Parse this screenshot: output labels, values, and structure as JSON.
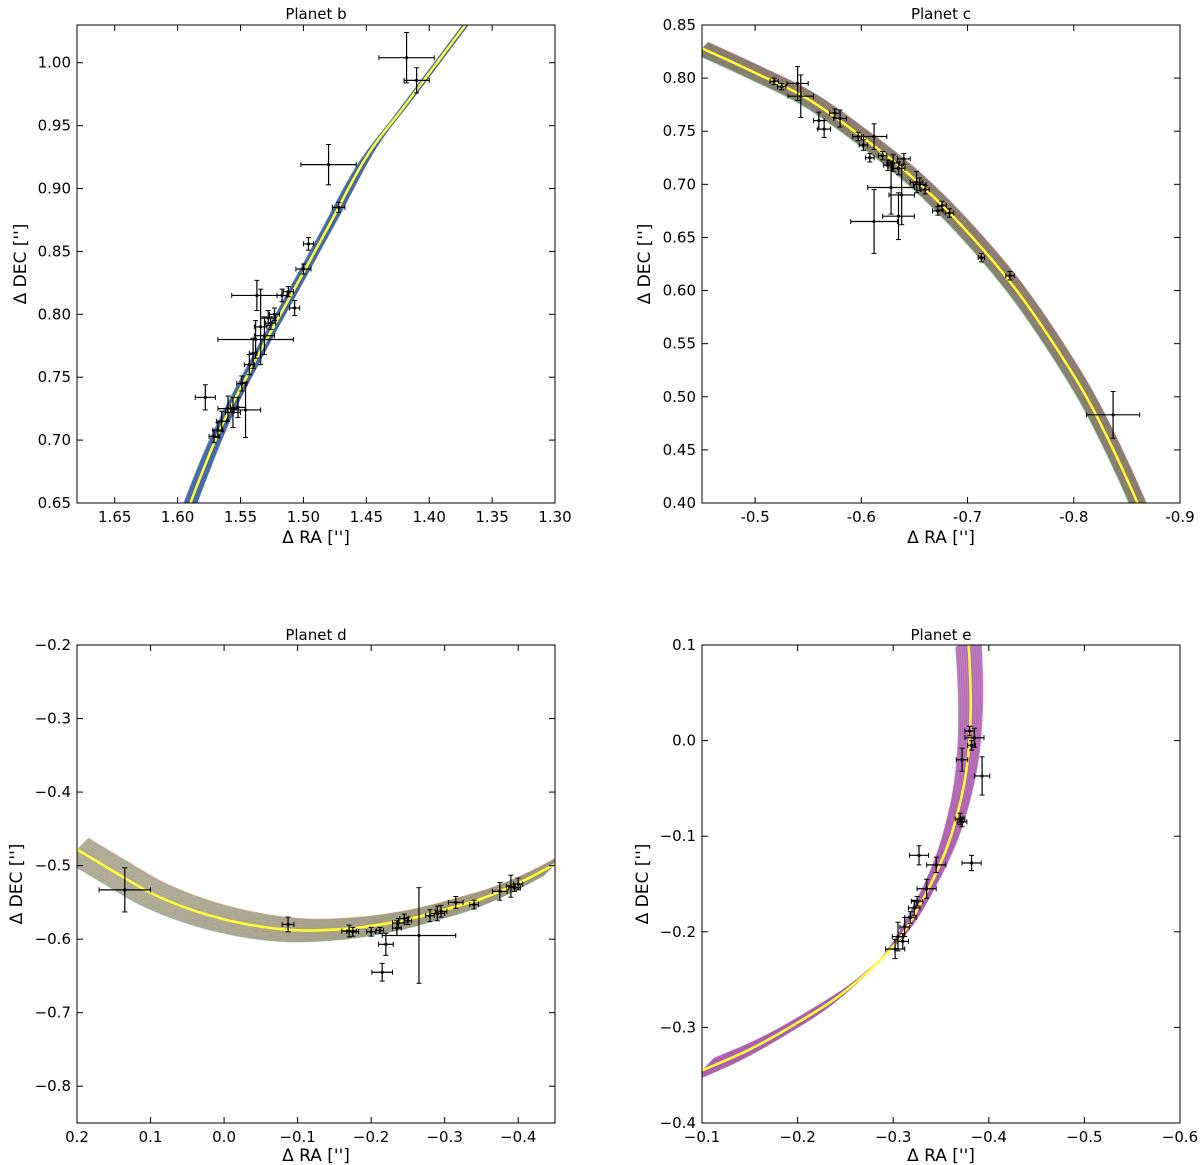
{
  "figure": {
    "colors": {
      "best_fit": "#ffff33",
      "data": "#000000",
      "frame": "#000000"
    }
  },
  "chart_data": [
    {
      "type": "scatter",
      "title": "Planet b",
      "xlabel": "Δ RA  ['']",
      "ylabel": "Δ DEC  ['']",
      "xlim": [
        1.68,
        1.3
      ],
      "ylim": [
        0.65,
        1.03
      ],
      "xticks": [
        1.65,
        1.6,
        1.55,
        1.5,
        1.45,
        1.4,
        1.35,
        1.3
      ],
      "yticks": [
        0.65,
        0.7,
        0.75,
        0.8,
        0.85,
        0.9,
        0.95,
        1.0
      ],
      "xtick_labels": [
        "1.65",
        "1.60",
        "1.55",
        "1.50",
        "1.45",
        "1.40",
        "1.35",
        "1.30"
      ],
      "ytick_labels": [
        "0.65",
        "0.70",
        "0.75",
        "0.80",
        "0.85",
        "0.90",
        "0.95",
        "1.00"
      ],
      "orbit_band_colors": [
        "#1f2fb4",
        "#2f45c8",
        "#3d8fbf",
        "#8b9a4a",
        "#4b6fd0"
      ],
      "orbit_band_width": 0.012,
      "orbit_curve": [
        [
          1.605,
          0.61
        ],
        [
          1.57,
          0.7
        ],
        [
          1.54,
          0.76
        ],
        [
          1.51,
          0.815
        ],
        [
          1.48,
          0.87
        ],
        [
          1.45,
          0.925
        ],
        [
          1.42,
          0.965
        ],
        [
          1.39,
          1.005
        ],
        [
          1.36,
          1.045
        ]
      ],
      "points": [
        [
          1.578,
          0.734,
          0.008,
          0.01
        ],
        [
          1.571,
          0.703,
          0.004,
          0.005
        ],
        [
          1.568,
          0.708,
          0.004,
          0.006
        ],
        [
          1.565,
          0.715,
          0.004,
          0.008
        ],
        [
          1.56,
          0.725,
          0.008,
          0.01
        ],
        [
          1.556,
          0.722,
          0.006,
          0.012
        ],
        [
          1.552,
          0.726,
          0.006,
          0.008
        ],
        [
          1.549,
          0.745,
          0.004,
          0.006
        ],
        [
          1.546,
          0.724,
          0.012,
          0.022
        ],
        [
          1.543,
          0.76,
          0.004,
          0.008
        ],
        [
          1.54,
          0.769,
          0.003,
          0.012
        ],
        [
          1.538,
          0.78,
          0.03,
          0.015
        ],
        [
          1.537,
          0.815,
          0.02,
          0.012
        ],
        [
          1.534,
          0.79,
          0.005,
          0.03
        ],
        [
          1.531,
          0.783,
          0.008,
          0.015
        ],
        [
          1.528,
          0.797,
          0.006,
          0.006
        ],
        [
          1.526,
          0.793,
          0.004,
          0.005
        ],
        [
          1.523,
          0.8,
          0.004,
          0.005
        ],
        [
          1.512,
          0.818,
          0.004,
          0.004
        ],
        [
          1.517,
          0.815,
          0.004,
          0.005
        ],
        [
          1.507,
          0.805,
          0.004,
          0.006
        ],
        [
          1.5,
          0.836,
          0.006,
          0.004
        ],
        [
          1.496,
          0.856,
          0.004,
          0.005
        ],
        [
          1.472,
          0.885,
          0.005,
          0.004
        ],
        [
          1.48,
          0.919,
          0.022,
          0.016
        ],
        [
          1.418,
          1.004,
          0.022,
          0.02
        ],
        [
          1.41,
          0.986,
          0.01,
          0.01
        ]
      ]
    },
    {
      "type": "scatter",
      "title": "Planet c",
      "xlabel": "Δ RA  ['']",
      "ylabel": "Δ DEC  ['']",
      "xlim": [
        -0.45,
        -0.9
      ],
      "ylim": [
        0.4,
        0.85
      ],
      "xticks": [
        -0.5,
        -0.6,
        -0.7,
        -0.8,
        -0.9
      ],
      "yticks": [
        0.4,
        0.45,
        0.5,
        0.55,
        0.6,
        0.65,
        0.7,
        0.75,
        0.8,
        0.85
      ],
      "xtick_labels": [
        "-0.5",
        "-0.6",
        "-0.7",
        "-0.8",
        "-0.9"
      ],
      "ytick_labels": [
        "0.40",
        "0.45",
        "0.50",
        "0.55",
        "0.60",
        "0.65",
        "0.70",
        "0.75",
        "0.80",
        "0.85"
      ],
      "orbit_band_colors": [
        "#d62020",
        "#e03a2a",
        "#3aa0c0",
        "#2fb0c8",
        "#7cb342"
      ],
      "orbit_band_width": 0.008,
      "orbit_curve": [
        [
          -0.45,
          0.828
        ],
        [
          -0.5,
          0.805
        ],
        [
          -0.55,
          0.78
        ],
        [
          -0.6,
          0.745
        ],
        [
          -0.65,
          0.705
        ],
        [
          -0.7,
          0.655
        ],
        [
          -0.75,
          0.595
        ],
        [
          -0.8,
          0.52
        ],
        [
          -0.83,
          0.465
        ],
        [
          -0.86,
          0.4
        ],
        [
          -0.875,
          0.36
        ]
      ],
      "points": [
        [
          -0.518,
          0.797,
          0.004,
          0.003
        ],
        [
          -0.525,
          0.792,
          0.004,
          0.003
        ],
        [
          -0.54,
          0.795,
          0.01,
          0.016
        ],
        [
          -0.543,
          0.783,
          0.012,
          0.02
        ],
        [
          -0.56,
          0.76,
          0.005,
          0.008
        ],
        [
          -0.565,
          0.752,
          0.006,
          0.008
        ],
        [
          -0.575,
          0.767,
          0.005,
          0.004
        ],
        [
          -0.58,
          0.762,
          0.006,
          0.008
        ],
        [
          -0.597,
          0.745,
          0.005,
          0.004
        ],
        [
          -0.602,
          0.737,
          0.004,
          0.005
        ],
        [
          -0.608,
          0.725,
          0.004,
          0.004
        ],
        [
          -0.612,
          0.745,
          0.012,
          0.012
        ],
        [
          -0.62,
          0.727,
          0.004,
          0.004
        ],
        [
          -0.625,
          0.718,
          0.004,
          0.005
        ],
        [
          -0.63,
          0.72,
          0.006,
          0.008
        ],
        [
          -0.635,
          0.715,
          0.006,
          0.006
        ],
        [
          -0.64,
          0.724,
          0.006,
          0.005
        ],
        [
          -0.612,
          0.665,
          0.022,
          0.03
        ],
        [
          -0.628,
          0.697,
          0.022,
          0.025
        ],
        [
          -0.635,
          0.67,
          0.015,
          0.022
        ],
        [
          -0.638,
          0.69,
          0.012,
          0.028
        ],
        [
          -0.652,
          0.702,
          0.006,
          0.01
        ],
        [
          -0.655,
          0.7,
          0.006,
          0.006
        ],
        [
          -0.66,
          0.695,
          0.004,
          0.004
        ],
        [
          -0.672,
          0.675,
          0.005,
          0.004
        ],
        [
          -0.676,
          0.68,
          0.004,
          0.004
        ],
        [
          -0.683,
          0.673,
          0.004,
          0.004
        ],
        [
          -0.713,
          0.631,
          0.003,
          0.004
        ],
        [
          -0.74,
          0.614,
          0.004,
          0.004
        ],
        [
          -0.837,
          0.483,
          0.025,
          0.022
        ]
      ]
    },
    {
      "type": "scatter",
      "title": "Planet d",
      "xlabel": "Δ RA  ['']",
      "ylabel": "Δ DEC  ['']",
      "xlim": [
        0.2,
        -0.45
      ],
      "ylim": [
        -0.85,
        -0.2
      ],
      "xticks": [
        0.2,
        0.1,
        0.0,
        -0.1,
        -0.2,
        -0.3,
        -0.4
      ],
      "yticks": [
        -0.8,
        -0.7,
        -0.6,
        -0.5,
        -0.4,
        -0.3,
        -0.2
      ],
      "xtick_labels": [
        "0.2",
        "0.1",
        "0.0",
        "−0.1",
        "−0.2",
        "−0.3",
        "−0.4"
      ],
      "ytick_labels": [
        "−0.8",
        "−0.7",
        "−0.6",
        "−0.5",
        "−0.4",
        "−0.3",
        "−0.2"
      ],
      "orbit_band_colors": [
        "#e08a3a",
        "#d98c50",
        "#6fa0c8",
        "#5b9bd5",
        "#8aa04a"
      ],
      "orbit_band_width": 0.022,
      "orbit_curve": [
        [
          0.2,
          -0.478
        ],
        [
          0.15,
          -0.508
        ],
        [
          0.1,
          -0.537
        ],
        [
          0.05,
          -0.558
        ],
        [
          0.0,
          -0.573
        ],
        [
          -0.05,
          -0.583
        ],
        [
          -0.1,
          -0.588
        ],
        [
          -0.15,
          -0.587
        ],
        [
          -0.2,
          -0.582
        ],
        [
          -0.25,
          -0.573
        ],
        [
          -0.3,
          -0.56
        ],
        [
          -0.35,
          -0.545
        ],
        [
          -0.4,
          -0.524
        ],
        [
          -0.45,
          -0.498
        ]
      ],
      "points": [
        [
          0.135,
          -0.533,
          0.035,
          0.03
        ],
        [
          -0.087,
          -0.58,
          0.008,
          0.01
        ],
        [
          -0.17,
          -0.589,
          0.01,
          0.008
        ],
        [
          -0.175,
          -0.59,
          0.008,
          0.006
        ],
        [
          -0.2,
          -0.59,
          0.006,
          0.006
        ],
        [
          -0.212,
          -0.588,
          0.005,
          0.004
        ],
        [
          -0.215,
          -0.645,
          0.014,
          0.012
        ],
        [
          -0.22,
          -0.607,
          0.01,
          0.015
        ],
        [
          -0.235,
          -0.585,
          0.006,
          0.01
        ],
        [
          -0.237,
          -0.578,
          0.008,
          0.006
        ],
        [
          -0.245,
          -0.572,
          0.006,
          0.006
        ],
        [
          -0.25,
          -0.575,
          0.005,
          0.005
        ],
        [
          -0.265,
          -0.595,
          0.05,
          0.065
        ],
        [
          -0.28,
          -0.568,
          0.006,
          0.008
        ],
        [
          -0.29,
          -0.565,
          0.01,
          0.01
        ],
        [
          -0.295,
          -0.562,
          0.008,
          0.008
        ],
        [
          -0.315,
          -0.55,
          0.01,
          0.008
        ],
        [
          -0.34,
          -0.553,
          0.006,
          0.006
        ],
        [
          -0.375,
          -0.535,
          0.01,
          0.012
        ],
        [
          -0.39,
          -0.528,
          0.006,
          0.015
        ],
        [
          -0.395,
          -0.53,
          0.008,
          0.005
        ],
        [
          -0.4,
          -0.525,
          0.006,
          0.008
        ]
      ]
    },
    {
      "type": "scatter",
      "title": "Planet e",
      "xlabel": "Δ RA  ['']",
      "ylabel": "Δ DEC  ['']",
      "xlim": [
        -0.1,
        -0.6
      ],
      "ylim": [
        -0.4,
        0.1
      ],
      "xticks": [
        -0.1,
        -0.2,
        -0.3,
        -0.4,
        -0.5,
        -0.6
      ],
      "yticks": [
        -0.4,
        -0.3,
        -0.2,
        -0.1,
        0.0,
        0.1
      ],
      "xtick_labels": [
        "−0.1",
        "−0.2",
        "−0.3",
        "−0.4",
        "−0.5",
        "−0.6"
      ],
      "ytick_labels": [
        "−0.4",
        "−0.3",
        "−0.2",
        "−0.1",
        "0.0",
        "0.1"
      ],
      "orbit_band_colors": [
        "#c040c0",
        "#b050c8",
        "#d060d0",
        "#8a9a4a",
        "#9b4fd0"
      ],
      "orbit_band_width": 0.018,
      "orbit_curve": [
        [
          -0.1,
          -0.345
        ],
        [
          -0.15,
          -0.323
        ],
        [
          -0.2,
          -0.295
        ],
        [
          -0.25,
          -0.262
        ],
        [
          -0.3,
          -0.215
        ],
        [
          -0.33,
          -0.168
        ],
        [
          -0.355,
          -0.115
        ],
        [
          -0.37,
          -0.065
        ],
        [
          -0.378,
          -0.02
        ],
        [
          -0.381,
          0.03
        ],
        [
          -0.38,
          0.08
        ],
        [
          -0.378,
          0.11
        ]
      ],
      "points": [
        [
          -0.302,
          -0.218,
          0.01,
          0.01
        ],
        [
          -0.305,
          -0.205,
          0.006,
          0.015
        ],
        [
          -0.31,
          -0.21,
          0.006,
          0.008
        ],
        [
          -0.312,
          -0.195,
          0.005,
          0.01
        ],
        [
          -0.318,
          -0.185,
          0.006,
          0.006
        ],
        [
          -0.322,
          -0.175,
          0.006,
          0.008
        ],
        [
          -0.325,
          -0.168,
          0.006,
          0.005
        ],
        [
          -0.327,
          -0.12,
          0.01,
          0.01
        ],
        [
          -0.335,
          -0.155,
          0.01,
          0.01
        ],
        [
          -0.345,
          -0.13,
          0.01,
          0.008
        ],
        [
          -0.37,
          -0.082,
          0.005,
          0.006
        ],
        [
          -0.372,
          -0.085,
          0.005,
          0.005
        ],
        [
          -0.372,
          -0.02,
          0.006,
          0.012
        ],
        [
          -0.38,
          0.01,
          0.005,
          0.005
        ],
        [
          -0.382,
          -0.005,
          0.004,
          0.005
        ],
        [
          -0.385,
          0.003,
          0.01,
          0.01
        ],
        [
          -0.393,
          -0.037,
          0.008,
          0.02
        ],
        [
          -0.382,
          -0.128,
          0.01,
          0.008
        ]
      ]
    }
  ]
}
